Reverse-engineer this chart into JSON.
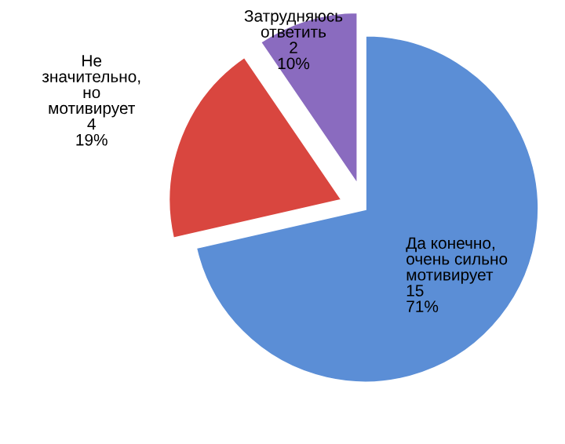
{
  "chart_data": {
    "type": "pie",
    "categories": [
      "Да конечно,\nочень сильно\nмотивирует",
      "Не\nзначительно,\nно\nмотивирует",
      "Затрудняюсь\nответить"
    ],
    "values": [
      15,
      4,
      2
    ],
    "value_labels": [
      "15\n71%",
      "4\n19%",
      "2\n10%"
    ],
    "colors": [
      "#5b8ed6",
      "#d9463f",
      "#8a6bbf"
    ]
  }
}
